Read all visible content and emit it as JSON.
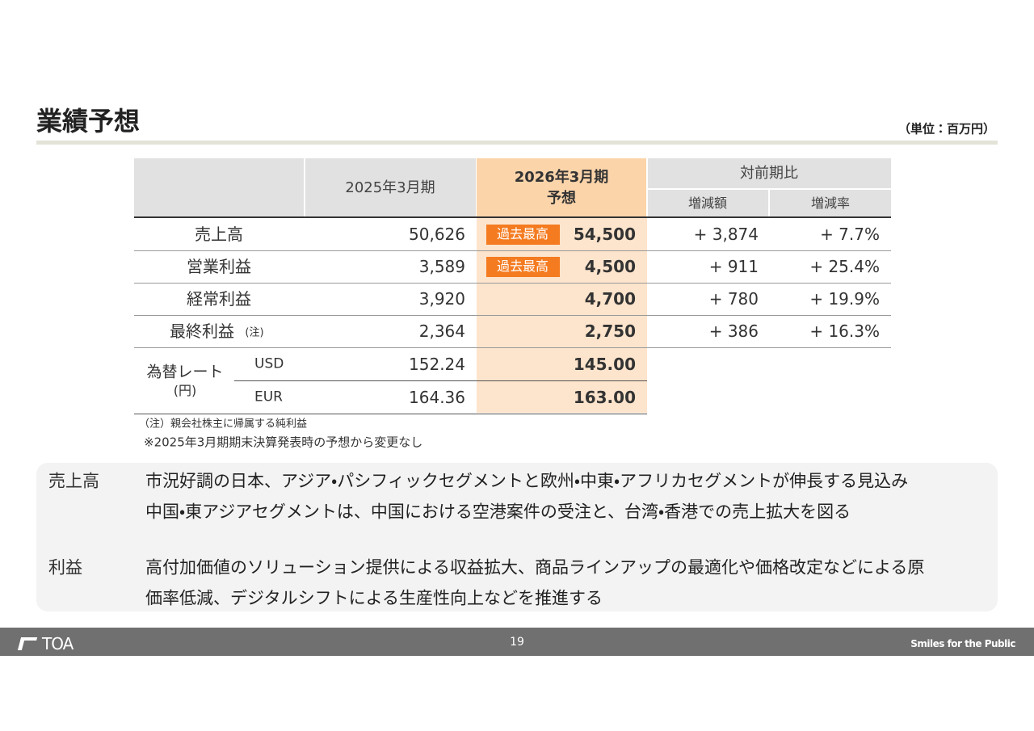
{
  "header": {
    "title": "業績予想",
    "unit": "（単位：百万円）"
  },
  "table": {
    "head": {
      "fy2025": "2025年3月期",
      "fy2026": [
        "2026年3月期",
        "予想"
      ],
      "yoy": "対前期比",
      "change": "増減額",
      "rate": "増減率"
    },
    "rows": [
      {
        "label": "売上高",
        "fy2025": "50,626",
        "badge": "過去最高",
        "fy2026": "54,500",
        "change": "+ 3,874",
        "rate": "+ 7.7%"
      },
      {
        "label": "営業利益",
        "fy2025": "3,589",
        "badge": "過去最高",
        "fy2026": "4,500",
        "change": "+ 911",
        "rate": "+ 25.4%"
      },
      {
        "label": "経常利益",
        "fy2025": "3,920",
        "fy2026": "4,700",
        "change": "+ 780",
        "rate": "+ 19.9%"
      },
      {
        "label": "最終利益",
        "note": "(注)",
        "fy2025": "2,364",
        "fy2026": "2,750",
        "change": "+ 386",
        "rate": "+ 16.3%"
      }
    ],
    "fx": {
      "label": [
        "為替レート",
        "(円)"
      ],
      "rows": [
        {
          "currency": "USD",
          "fy2025": "152.24",
          "fy2026": "145.00"
        },
        {
          "currency": "EUR",
          "fy2025": "164.36",
          "fy2026": "163.00"
        }
      ]
    }
  },
  "notes": [
    "（注）親会社株主に帰属する純利益",
    "※2025年3月期期末決算発表時の予想から変更なし"
  ],
  "summary": [
    {
      "heading": "売上高",
      "lines": [
        "市況好調の日本、アジア・パシフィックセグメントと欧州・中東・アフリカセグメントが伸長する見込み",
        "中国・東アジアセグメントは、中国における空港案件の受注と、台湾・香港での売上拡大を図る"
      ]
    },
    {
      "heading": "利益",
      "lines": [
        "高付加価値のソリューション提供による収益拡大、商品ラインアップの最適化や価格改定などによる原",
        "価率低減、デジタルシフトによる生産性向上などを推進する"
      ]
    }
  ],
  "footer": {
    "logo": "TOA",
    "page": "19",
    "tagline": "Smiles for the Public"
  }
}
